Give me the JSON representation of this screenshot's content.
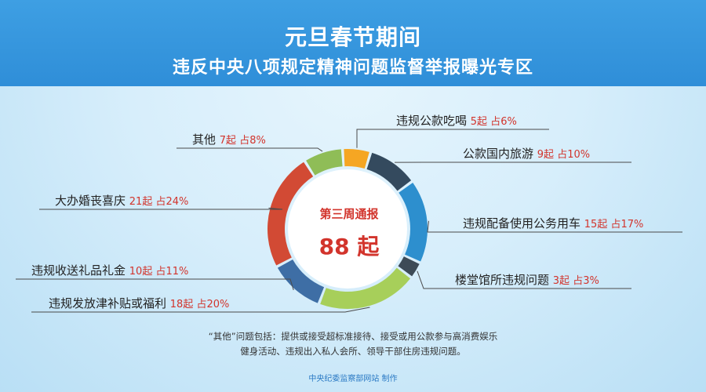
{
  "header": {
    "title": "元旦春节期间",
    "subtitle": "违反中央八项规定精神问题监督举报曝光专区"
  },
  "center": {
    "label": "第三周通报",
    "value": "88 起"
  },
  "colors": {
    "header_bg": "#3396df",
    "label_red": "#d2342c",
    "text_dark": "#222222"
  },
  "chart_data": {
    "type": "pie",
    "donut": true,
    "title": "",
    "total": 88,
    "unit": "起",
    "slices": [
      {
        "name": "违规公款吃喝",
        "count": 5,
        "count_label": "5起",
        "pct": 6,
        "pct_label": "占6%",
        "color": "#f5a623"
      },
      {
        "name": "公款国内旅游",
        "count": 9,
        "count_label": "9起",
        "pct": 10,
        "pct_label": "占10%",
        "color": "#344a5e"
      },
      {
        "name": "违规配备使用公务用车",
        "count": 15,
        "count_label": "15起",
        "pct": 17,
        "pct_label": "占17%",
        "color": "#2d8fce"
      },
      {
        "name": "楼堂馆所违规问题",
        "count": 3,
        "count_label": "3起",
        "pct": 3,
        "pct_label": "占3%",
        "color": "#3d4b57"
      },
      {
        "name": "违规发放津补贴或福利",
        "count": 18,
        "count_label": "18起",
        "pct": 20,
        "pct_label": "占20%",
        "color": "#a7cf5a"
      },
      {
        "name": "违规收送礼品礼金",
        "count": 10,
        "count_label": "10起",
        "pct": 11,
        "pct_label": "占11%",
        "color": "#3e6ea5"
      },
      {
        "name": "大办婚丧喜庆",
        "count": 21,
        "count_label": "21起",
        "pct": 24,
        "pct_label": "占24%",
        "color": "#d24a34"
      },
      {
        "name": "其他",
        "count": 7,
        "count_label": "7起",
        "pct": 8,
        "pct_label": "占8%",
        "color": "#8fbd57"
      }
    ]
  },
  "note": {
    "line1": "“其他”问题包括：提供或接受超标准接待、接受或用公款参与高消费娱乐",
    "line2": "健身活动、违规出入私人会所、领导干部住房违规问题。"
  },
  "credit": "中央纪委监察部网站  制作"
}
